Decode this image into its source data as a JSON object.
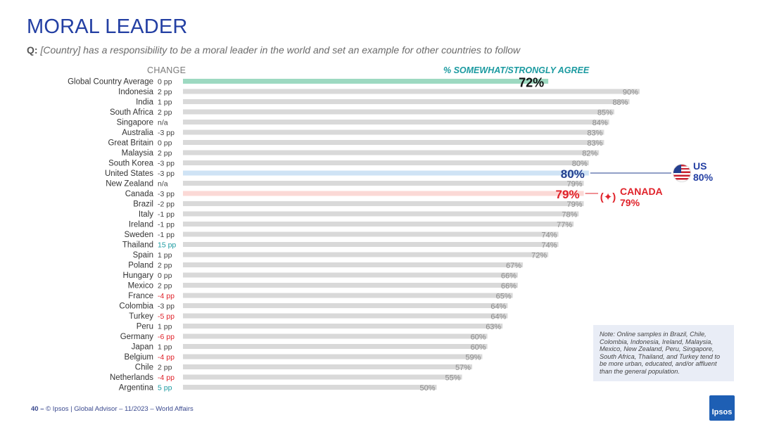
{
  "header": {
    "title": "MORAL LEADER",
    "question_prefix": "Q:",
    "question_text": "[Country] has a responsibility to be a moral leader in the world and set an example for other countries to follow",
    "change_header": "CHANGE",
    "agree_header": "% SOMEWHAT/STRONGLY AGREE"
  },
  "callouts": {
    "us_name": "US",
    "us_value": "80%",
    "canada_name": "CANADA",
    "canada_value": "79%",
    "us_flag_icon": "us-flag-icon",
    "canada_flag_icon": "canada-flag-icon"
  },
  "note": "Note: Online samples in Brazil, Chile, Colombia, Indonesia, Ireland, Malaysia, Mexico, New Zealand, Peru, Singapore, South Africa, Thailand, and Turkey tend to be more urban, educated, and/or affluent than the general population.",
  "footer": {
    "page": "40 –",
    "text": "© Ipsos | Global Advisor – 11/2023 – World Affairs"
  },
  "logo_text": "Ipsos",
  "colors": {
    "title": "#233fa3",
    "bar_default": "#d9d9d9",
    "bar_global": "#9dd9c1",
    "bar_us": "#cfe3f5",
    "bar_canada": "#fbd9d6",
    "change_positive": "#1b9aa0",
    "change_negative": "#e0232b",
    "change_neutral": "#444444"
  },
  "chart_data": {
    "type": "bar",
    "orientation": "horizontal",
    "xlim": [
      0,
      100
    ],
    "unit": "%",
    "categories": [
      "Global Country Average",
      "Indonesia",
      "India",
      "South Africa",
      "Singapore",
      "Australia",
      "Great Britain",
      "Malaysia",
      "South Korea",
      "United States",
      "New Zealand",
      "Canada",
      "Brazil",
      "Italy",
      "Ireland",
      "Sweden",
      "Thailand",
      "Spain",
      "Poland",
      "Hungary",
      "Mexico",
      "France",
      "Colombia",
      "Turkey",
      "Peru",
      "Germany",
      "Japan",
      "Belgium",
      "Chile",
      "Netherlands",
      "Argentina"
    ],
    "values": [
      72,
      90,
      88,
      85,
      84,
      83,
      83,
      82,
      80,
      80,
      79,
      79,
      79,
      78,
      77,
      74,
      74,
      72,
      67,
      66,
      66,
      65,
      64,
      64,
      63,
      60,
      60,
      59,
      57,
      55,
      50
    ],
    "value_labels": [
      "72%",
      "90%",
      "88%",
      "85%",
      "84%",
      "83%",
      "83%",
      "82%",
      "80%",
      "80%",
      "79%",
      "79%",
      "79%",
      "78%",
      "77%",
      "74%",
      "74%",
      "72%",
      "67%",
      "66%",
      "66%",
      "65%",
      "64%",
      "64%",
      "63%",
      "60%",
      "60%",
      "59%",
      "57%",
      "55%",
      "50%"
    ],
    "change": [
      "0 pp",
      "2 pp",
      "1 pp",
      "2 pp",
      "n/a",
      "-3 pp",
      "0 pp",
      "2 pp",
      "-3 pp",
      "-3 pp",
      "n/a",
      "-3 pp",
      "-2 pp",
      "-1 pp",
      "-1 pp",
      "-1 pp",
      "15 pp",
      "1 pp",
      "2 pp",
      "0 pp",
      "2 pp",
      "-4 pp",
      "-3 pp",
      "-5 pp",
      "1 pp",
      "-6 pp",
      "1 pp",
      "-4 pp",
      "2 pp",
      "-4 pp",
      "5 pp"
    ],
    "change_status": [
      "neutral",
      "neutral",
      "neutral",
      "neutral",
      "neutral",
      "neutral",
      "neutral",
      "neutral",
      "neutral",
      "neutral",
      "neutral",
      "neutral",
      "neutral",
      "neutral",
      "neutral",
      "neutral",
      "positive",
      "neutral",
      "neutral",
      "neutral",
      "neutral",
      "negative",
      "neutral",
      "negative",
      "neutral",
      "negative",
      "neutral",
      "negative",
      "neutral",
      "negative",
      "positive"
    ],
    "highlight": [
      "global",
      "",
      "",
      "",
      "",
      "",
      "",
      "",
      "",
      "us",
      "",
      "canada",
      "",
      "",
      "",
      "",
      "",
      "",
      "",
      "",
      "",
      "",
      "",
      "",
      "",
      "",
      "",
      "",
      "",
      "",
      ""
    ]
  }
}
